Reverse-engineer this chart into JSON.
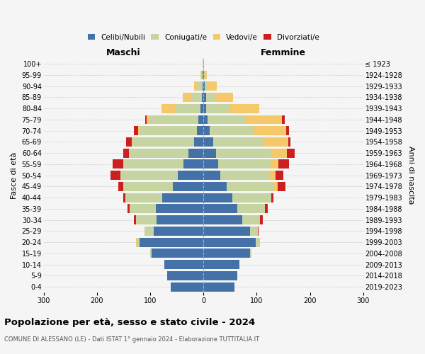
{
  "age_groups": [
    "0-4",
    "5-9",
    "10-14",
    "15-19",
    "20-24",
    "25-29",
    "30-34",
    "35-39",
    "40-44",
    "45-49",
    "50-54",
    "55-59",
    "60-64",
    "65-69",
    "70-74",
    "75-79",
    "80-84",
    "85-89",
    "90-94",
    "95-99",
    "100+"
  ],
  "birth_years": [
    "2019-2023",
    "2014-2018",
    "2009-2013",
    "2004-2008",
    "1999-2003",
    "1994-1998",
    "1989-1993",
    "1984-1988",
    "1979-1983",
    "1974-1978",
    "1969-1973",
    "1964-1968",
    "1959-1963",
    "1954-1958",
    "1949-1953",
    "1944-1948",
    "1939-1943",
    "1934-1938",
    "1929-1933",
    "1924-1928",
    "≤ 1923"
  ],
  "maschi_celibi": [
    62,
    68,
    74,
    98,
    120,
    93,
    88,
    90,
    78,
    58,
    48,
    38,
    28,
    18,
    12,
    10,
    5,
    3,
    2,
    1,
    0
  ],
  "maschi_coniugati": [
    0,
    0,
    0,
    2,
    5,
    18,
    38,
    48,
    68,
    92,
    108,
    112,
    110,
    115,
    108,
    92,
    48,
    20,
    9,
    3,
    1
  ],
  "maschi_vedovi": [
    0,
    0,
    0,
    0,
    2,
    0,
    0,
    0,
    0,
    0,
    0,
    0,
    2,
    2,
    2,
    5,
    26,
    16,
    6,
    1,
    0
  ],
  "maschi_divorziati": [
    0,
    0,
    0,
    0,
    0,
    0,
    4,
    5,
    5,
    10,
    18,
    20,
    10,
    10,
    8,
    2,
    0,
    0,
    0,
    0,
    0
  ],
  "femmine_nubili": [
    58,
    63,
    68,
    88,
    98,
    88,
    73,
    63,
    54,
    43,
    32,
    28,
    24,
    18,
    12,
    8,
    5,
    5,
    2,
    1,
    0
  ],
  "femmine_coniugate": [
    0,
    0,
    0,
    2,
    8,
    14,
    33,
    53,
    73,
    88,
    93,
    98,
    103,
    93,
    82,
    72,
    42,
    18,
    5,
    2,
    0
  ],
  "femmine_vedove": [
    0,
    0,
    0,
    0,
    0,
    0,
    0,
    0,
    0,
    8,
    10,
    15,
    30,
    48,
    62,
    68,
    58,
    32,
    18,
    4,
    1
  ],
  "femmine_divorziate": [
    0,
    0,
    0,
    0,
    0,
    2,
    5,
    5,
    5,
    15,
    15,
    20,
    15,
    5,
    5,
    5,
    0,
    0,
    0,
    0,
    0
  ],
  "colors": {
    "celibi": "#4472a8",
    "coniugati": "#c5d4a0",
    "vedovi": "#f5c96a",
    "divorziati": "#cc2020"
  },
  "xlim": 300,
  "title": "Popolazione per età, sesso e stato civile - 2024",
  "subtitle": "COMUNE DI ALESSANO (LE) - Dati ISTAT 1° gennaio 2024 - Elaborazione TUTTITALIA.IT",
  "ylabel_left": "Fasce di età",
  "ylabel_right": "Anni di nascita",
  "label_maschi": "Maschi",
  "label_femmine": "Femmine",
  "bg_color": "#f5f5f5",
  "legend_labels": [
    "Celibi/Nubili",
    "Coniugati/e",
    "Vedovi/e",
    "Divorziati/e"
  ]
}
